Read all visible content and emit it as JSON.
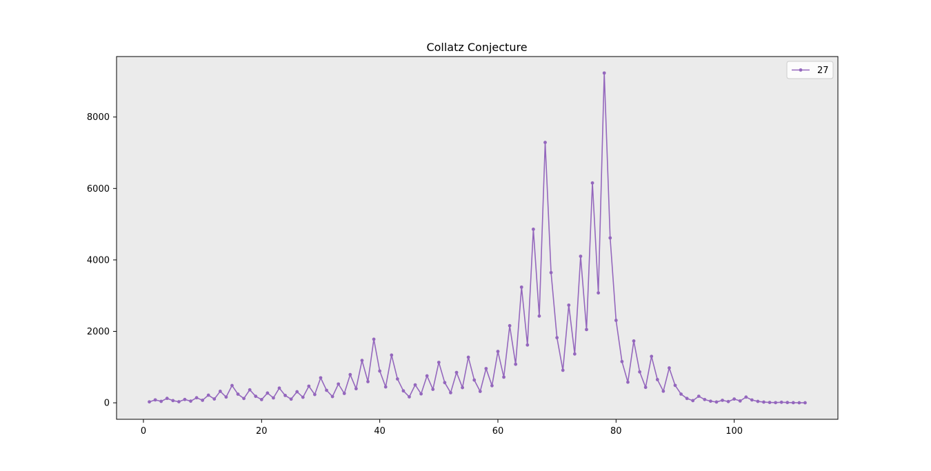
{
  "chart_data": {
    "type": "line",
    "title": "Collatz Conjecture",
    "xlabel": "",
    "ylabel": "",
    "xlim": [
      -4.55,
      117.55
    ],
    "ylim": [
      -461,
      9693
    ],
    "xticks": [
      0,
      20,
      40,
      60,
      80,
      100
    ],
    "yticks": [
      0,
      2000,
      4000,
      6000,
      8000
    ],
    "grid": false,
    "legend_position": "top-right",
    "colors": {
      "line": "#9467bd",
      "plot_background": "#ebebeb",
      "axis": "#000000"
    },
    "series": [
      {
        "name": "27",
        "x": [
          1,
          2,
          3,
          4,
          5,
          6,
          7,
          8,
          9,
          10,
          11,
          12,
          13,
          14,
          15,
          16,
          17,
          18,
          19,
          20,
          21,
          22,
          23,
          24,
          25,
          26,
          27,
          28,
          29,
          30,
          31,
          32,
          33,
          34,
          35,
          36,
          37,
          38,
          39,
          40,
          41,
          42,
          43,
          44,
          45,
          46,
          47,
          48,
          49,
          50,
          51,
          52,
          53,
          54,
          55,
          56,
          57,
          58,
          59,
          60,
          61,
          62,
          63,
          64,
          65,
          66,
          67,
          68,
          69,
          70,
          71,
          72,
          73,
          74,
          75,
          76,
          77,
          78,
          79,
          80,
          81,
          82,
          83,
          84,
          85,
          86,
          87,
          88,
          89,
          90,
          91,
          92,
          93,
          94,
          95,
          96,
          97,
          98,
          99,
          100,
          101,
          102,
          103,
          104,
          105,
          106,
          107,
          108,
          109,
          110,
          111,
          112
        ],
        "values": [
          27,
          82,
          41,
          124,
          62,
          31,
          94,
          47,
          142,
          71,
          214,
          107,
          322,
          161,
          484,
          242,
          121,
          364,
          182,
          91,
          274,
          137,
          412,
          206,
          103,
          310,
          155,
          466,
          233,
          700,
          350,
          175,
          526,
          263,
          790,
          395,
          1186,
          593,
          1780,
          890,
          445,
          1336,
          668,
          334,
          167,
          502,
          251,
          754,
          377,
          1132,
          566,
          283,
          850,
          425,
          1276,
          638,
          319,
          958,
          479,
          1438,
          719,
          2158,
          1079,
          3238,
          1619,
          4858,
          2429,
          7288,
          3644,
          1822,
          911,
          2734,
          1367,
          4102,
          2051,
          6154,
          3077,
          9232,
          4616,
          2308,
          1154,
          577,
          1732,
          866,
          433,
          1300,
          650,
          325,
          976,
          488,
          244,
          122,
          61,
          184,
          92,
          46,
          23,
          70,
          35,
          106,
          53,
          160,
          80,
          40,
          20,
          10,
          5,
          16,
          8,
          4,
          2,
          1
        ]
      }
    ]
  }
}
